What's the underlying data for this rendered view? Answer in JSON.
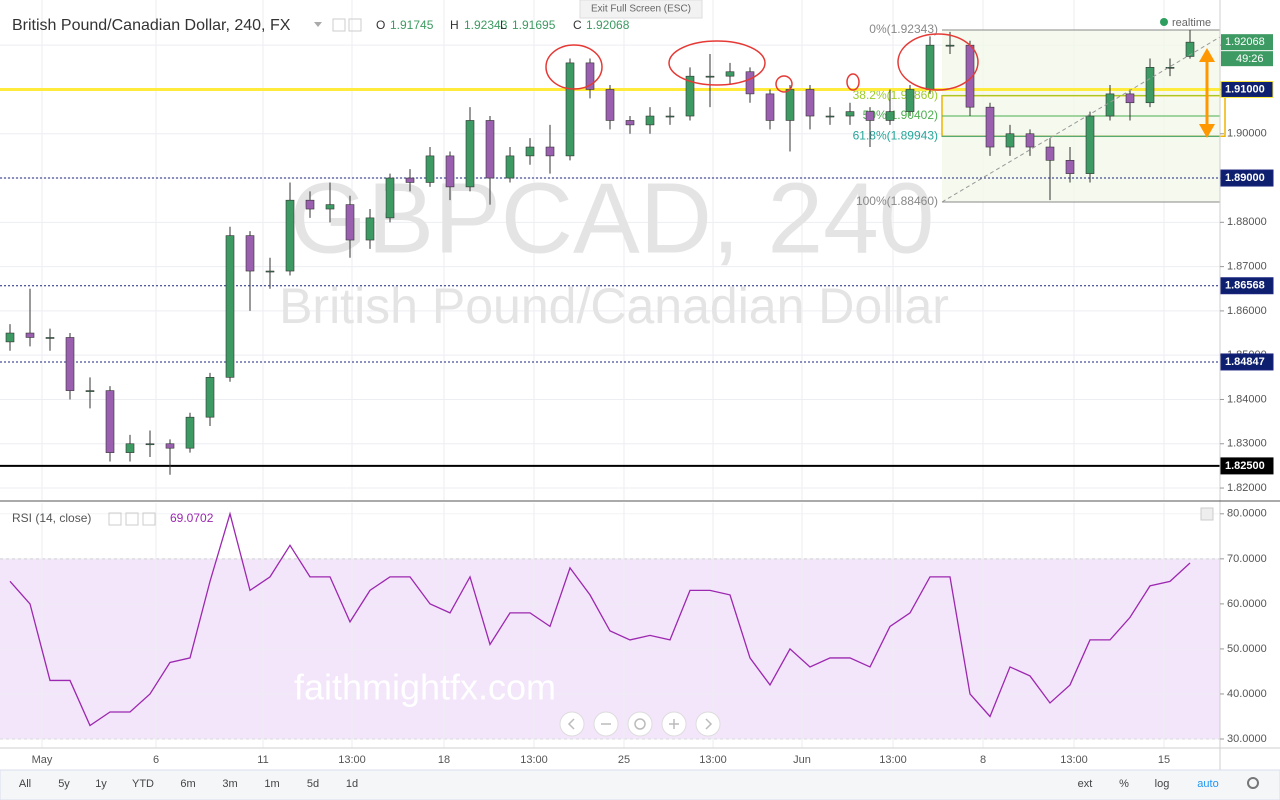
{
  "header": {
    "title": "British Pound/Canadian Dollar, 240, FX",
    "ohlc_labels": [
      "O",
      "H",
      "L",
      "C"
    ],
    "exit": "Exit Full Screen (ESC)",
    "status": "realtime"
  },
  "site": "faithmightfx.com",
  "toolbar": {
    "ranges": [
      "All",
      "5y",
      "1y",
      "YTD",
      "6m",
      "3m",
      "1m",
      "5d",
      "1d"
    ],
    "options": [
      "ext",
      "%",
      "log",
      "auto"
    ]
  },
  "chart_data": {
    "type": "candlestick",
    "watermark": [
      "GBPCAD, 240",
      "British Pound/Canadian Dollar"
    ],
    "up_color": "#3d9a62",
    "down_color": "#9a5fae",
    "grid": true,
    "ylim": [
      1.8173,
      1.9302
    ],
    "yticks": [
      {
        "value": 1.82,
        "label": "1.82000"
      },
      {
        "value": 1.83,
        "label": "1.83000"
      },
      {
        "value": 1.84,
        "label": "1.84000"
      },
      {
        "value": 1.85,
        "label": "1.85000"
      },
      {
        "value": 1.86,
        "label": "1.86000"
      },
      {
        "value": 1.87,
        "label": "1.87000"
      },
      {
        "value": 1.88,
        "label": "1.88000"
      },
      {
        "value": 1.89,
        "label": "1.89000"
      },
      {
        "value": 1.9,
        "label": "1.90000"
      },
      {
        "value": 1.91,
        "label": "1.91000"
      },
      {
        "value": 1.92,
        "label": "1.92000"
      }
    ],
    "x_labels": [
      "May",
      "6",
      "11",
      "13:00",
      "18",
      "13:00",
      "25",
      "13:00",
      "Jun",
      "13:00",
      "8",
      "13:00",
      "15"
    ],
    "candles": [
      [
        1.853,
        1.857,
        1.851,
        1.855
      ],
      [
        1.855,
        1.865,
        1.852,
        1.854
      ],
      [
        1.854,
        1.856,
        1.851,
        1.854
      ],
      [
        1.854,
        1.855,
        1.84,
        1.842
      ],
      [
        1.842,
        1.845,
        1.838,
        1.842
      ],
      [
        1.842,
        1.843,
        1.826,
        1.828
      ],
      [
        1.828,
        1.832,
        1.826,
        1.83
      ],
      [
        1.83,
        1.833,
        1.827,
        1.83
      ],
      [
        1.83,
        1.831,
        1.823,
        1.829
      ],
      [
        1.829,
        1.837,
        1.828,
        1.836
      ],
      [
        1.836,
        1.846,
        1.834,
        1.845
      ],
      [
        1.845,
        1.879,
        1.844,
        1.877
      ],
      [
        1.877,
        1.878,
        1.86,
        1.869
      ],
      [
        1.869,
        1.872,
        1.865,
        1.869
      ],
      [
        1.869,
        1.889,
        1.868,
        1.885
      ],
      [
        1.885,
        1.887,
        1.881,
        1.883
      ],
      [
        1.883,
        1.889,
        1.88,
        1.884
      ],
      [
        1.884,
        1.886,
        1.872,
        1.876
      ],
      [
        1.876,
        1.883,
        1.874,
        1.881
      ],
      [
        1.881,
        1.891,
        1.88,
        1.89
      ],
      [
        1.89,
        1.892,
        1.887,
        1.889
      ],
      [
        1.889,
        1.897,
        1.888,
        1.895
      ],
      [
        1.895,
        1.896,
        1.885,
        1.888
      ],
      [
        1.888,
        1.906,
        1.887,
        1.903
      ],
      [
        1.903,
        1.904,
        1.884,
        1.89
      ],
      [
        1.89,
        1.897,
        1.889,
        1.895
      ],
      [
        1.895,
        1.899,
        1.893,
        1.897
      ],
      [
        1.897,
        1.902,
        1.891,
        1.895
      ],
      [
        1.895,
        1.917,
        1.894,
        1.916
      ],
      [
        1.916,
        1.917,
        1.908,
        1.91
      ],
      [
        1.91,
        1.911,
        1.901,
        1.903
      ],
      [
        1.903,
        1.904,
        1.9,
        1.902
      ],
      [
        1.902,
        1.906,
        1.9,
        1.904
      ],
      [
        1.904,
        1.906,
        1.902,
        1.904
      ],
      [
        1.904,
        1.915,
        1.903,
        1.913
      ],
      [
        1.913,
        1.918,
        1.906,
        1.913
      ],
      [
        1.913,
        1.916,
        1.911,
        1.914
      ],
      [
        1.914,
        1.915,
        1.907,
        1.909
      ],
      [
        1.909,
        1.91,
        1.901,
        1.903
      ],
      [
        1.903,
        1.911,
        1.896,
        1.91
      ],
      [
        1.91,
        1.911,
        1.901,
        1.904
      ],
      [
        1.904,
        1.906,
        1.902,
        1.904
      ],
      [
        1.904,
        1.907,
        1.902,
        1.905
      ],
      [
        1.905,
        1.906,
        1.897,
        1.903
      ],
      [
        1.903,
        1.91,
        1.902,
        1.905
      ],
      [
        1.905,
        1.911,
        1.904,
        1.91
      ],
      [
        1.91,
        1.922,
        1.909,
        1.92
      ],
      [
        1.92,
        1.923,
        1.918,
        1.92
      ],
      [
        1.92,
        1.921,
        1.904,
        1.906
      ],
      [
        1.906,
        1.907,
        1.895,
        1.897
      ],
      [
        1.897,
        1.902,
        1.895,
        1.9
      ],
      [
        1.9,
        1.901,
        1.895,
        1.897
      ],
      [
        1.897,
        1.899,
        1.885,
        1.894
      ],
      [
        1.894,
        1.897,
        1.889,
        1.891
      ],
      [
        1.891,
        1.905,
        1.889,
        1.904
      ],
      [
        1.904,
        1.911,
        1.903,
        1.909
      ],
      [
        1.909,
        1.91,
        1.903,
        1.907
      ],
      [
        1.907,
        1.917,
        1.906,
        1.915
      ],
      [
        1.915,
        1.917,
        1.913,
        1.915
      ],
      [
        1.91745,
        1.92343,
        1.91695,
        1.92068
      ]
    ],
    "countdown": "49:26",
    "levels": [
      {
        "value": 1.91,
        "label": "1.91000",
        "color": "#ffeb3b",
        "label_color": "#0d1f6e",
        "width": 3,
        "dashed": false
      },
      {
        "value": 1.89,
        "label": "1.89000",
        "color": "#1a237e",
        "label_color": "#0d1f6e",
        "width": 1,
        "dashed": true
      },
      {
        "value": 1.86568,
        "label": "1.86568",
        "color": "#1a237e",
        "label_color": "#0d1f6e",
        "width": 1,
        "dashed": true
      },
      {
        "value": 1.84847,
        "label": "1.84847",
        "color": "#1a237e",
        "label_color": "#0d1f6e",
        "width": 1,
        "dashed": true
      },
      {
        "value": 1.825,
        "label": "1.82500",
        "color": "#000000",
        "label_color": "#000000",
        "width": 2,
        "dashed": false
      }
    ],
    "fib": [
      {
        "value": 1.92343,
        "label": "0%(1.92343)",
        "color": "#888888"
      },
      {
        "value": 1.9086,
        "label": "38.2%(1.90860)",
        "color": "#9ccc2a"
      },
      {
        "value": 1.90402,
        "label": "50%(1.90402)",
        "color": "#4caf50"
      },
      {
        "value": 1.89943,
        "label": "61.8%(1.89943)",
        "color": "#26a69a"
      },
      {
        "value": 1.8846,
        "label": "100%(1.88460)",
        "color": "#888888"
      }
    ],
    "rsi": {
      "type": "line",
      "title": "RSI (14, close)",
      "color": "#9c27b0",
      "band": [
        30,
        70
      ],
      "ylim": [
        28,
        82.4
      ],
      "yticks": [
        {
          "value": 30,
          "label": "30.0000"
        },
        {
          "value": 40,
          "label": "40.0000"
        },
        {
          "value": 50,
          "label": "50.0000"
        },
        {
          "value": 60,
          "label": "60.0000"
        },
        {
          "value": 70,
          "label": "70.0000"
        },
        {
          "value": 80,
          "label": "80.0000"
        }
      ],
      "values": [
        65,
        60,
        43,
        43,
        33,
        36,
        36,
        40,
        47,
        48,
        65,
        80,
        63,
        66,
        73,
        66,
        66,
        56,
        63,
        66,
        66,
        60,
        58,
        66,
        51,
        58,
        58,
        55,
        68,
        62,
        54,
        52,
        53,
        52,
        63,
        63,
        62,
        48,
        42,
        50,
        46,
        48,
        48,
        46,
        55,
        58,
        66,
        66,
        40,
        35,
        46,
        44,
        38,
        42,
        52,
        52,
        57,
        64,
        65,
        69.0702
      ]
    }
  }
}
